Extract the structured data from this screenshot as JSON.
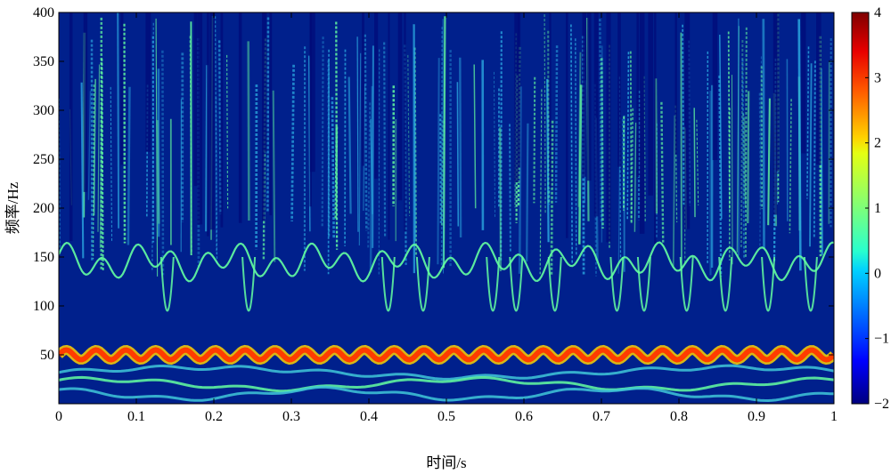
{
  "chart_data": {
    "type": "heatmap",
    "title": "",
    "xlabel": "时间/s",
    "ylabel": "频率/Hz",
    "xlim": [
      0,
      1
    ],
    "ylim": [
      0,
      400
    ],
    "x_ticks": [
      0,
      0.1,
      0.2,
      0.3,
      0.4,
      0.5,
      0.6,
      0.7,
      0.8,
      0.9,
      1
    ],
    "x_tick_labels": [
      "0",
      "0.1",
      "0.2",
      "0.3",
      "0.4",
      "0.5",
      "0.6",
      "0.7",
      "0.8",
      "0.9",
      "1"
    ],
    "y_ticks": [
      50,
      100,
      150,
      200,
      250,
      300,
      350,
      400
    ],
    "y_tick_labels": [
      "50",
      "100",
      "150",
      "200",
      "250",
      "300",
      "350",
      "400"
    ],
    "colorbar": {
      "range": [
        -2,
        4
      ],
      "ticks": [
        -2,
        -1,
        0,
        1,
        2,
        3,
        4
      ],
      "tick_labels": [
        "−2",
        "−1",
        "0",
        "1",
        "2",
        "3",
        "4"
      ],
      "colormap": "jet"
    },
    "colors": {
      "background": "#00208c",
      "deep": "#000a78",
      "band": "#ff3c00",
      "band_edge": "#ffd200",
      "ridge": "#64ffa0",
      "lowband": "#40c8d8"
    },
    "features": [
      {
        "name": "fundamental band",
        "frequency_hz": 50,
        "level": 3.5
      },
      {
        "name": "harmonic ridge",
        "frequency_range_hz": [
          120,
          170
        ],
        "level": 1
      },
      {
        "name": "low-frequency components",
        "frequency_range_hz": [
          5,
          35
        ],
        "level": 0.5
      }
    ]
  }
}
